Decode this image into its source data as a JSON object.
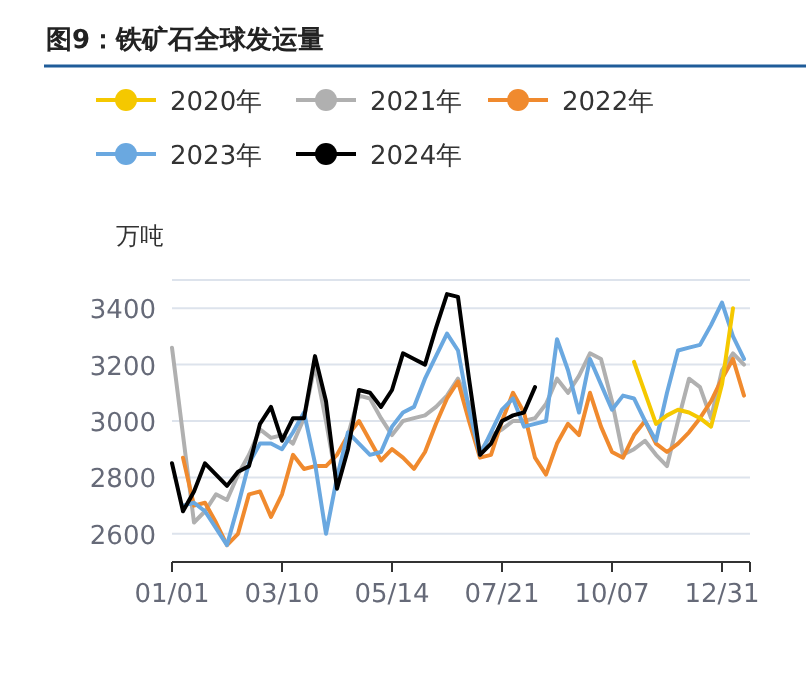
{
  "chart_data": {
    "type": "line",
    "title": "图9：铁矿石全球发运量",
    "ylabel": "万吨",
    "categories": [
      "01/01",
      null,
      null,
      null,
      null,
      null,
      null,
      null,
      null,
      null,
      "03/10",
      null,
      null,
      null,
      null,
      null,
      null,
      null,
      null,
      null,
      "05/14",
      null,
      null,
      null,
      null,
      null,
      null,
      null,
      null,
      null,
      "07/21",
      null,
      null,
      null,
      null,
      null,
      null,
      null,
      null,
      null,
      "10/07",
      null,
      null,
      null,
      null,
      null,
      null,
      null,
      null,
      null,
      "12/31",
      null,
      null
    ],
    "series": [
      {
        "name": "2020年",
        "color": "#f5c800",
        "values": [
          null,
          null,
          null,
          null,
          null,
          null,
          null,
          null,
          null,
          null,
          null,
          null,
          null,
          null,
          null,
          null,
          null,
          null,
          null,
          null,
          null,
          null,
          null,
          null,
          null,
          null,
          null,
          null,
          null,
          null,
          null,
          null,
          null,
          null,
          null,
          null,
          null,
          null,
          null,
          null,
          null,
          null,
          3210,
          3100,
          2990,
          3020,
          3040,
          3030,
          3010,
          2980,
          3130,
          3400,
          null
        ]
      },
      {
        "name": "2021年",
        "color": "#b0b0b0",
        "values": [
          3260,
          2950,
          2640,
          2680,
          2740,
          2720,
          2810,
          2880,
          2970,
          2940,
          2950,
          2920,
          3010,
          3200,
          3000,
          2780,
          2950,
          3090,
          3080,
          3010,
          2950,
          3000,
          3010,
          3020,
          3050,
          3090,
          3150,
          3060,
          2890,
          2950,
          2970,
          3000,
          3000,
          3010,
          3060,
          3150,
          3100,
          3160,
          3240,
          3220,
          3070,
          2880,
          2900,
          2930,
          2880,
          2840,
          3000,
          3150,
          3120,
          3010,
          3180,
          3240,
          3200
        ]
      },
      {
        "name": "2022年",
        "color": "#f08a2e",
        "values": [
          null,
          2870,
          2700,
          2710,
          2640,
          2560,
          2600,
          2740,
          2750,
          2660,
          2740,
          2880,
          2830,
          2840,
          2840,
          2880,
          2950,
          3000,
          2930,
          2860,
          2900,
          2870,
          2830,
          2890,
          2990,
          3080,
          3140,
          3000,
          2870,
          2880,
          3000,
          3100,
          3030,
          2870,
          2810,
          2920,
          2990,
          2950,
          3100,
          2980,
          2890,
          2870,
          2950,
          3000,
          2920,
          2890,
          2920,
          2960,
          3010,
          3070,
          3150,
          3220,
          3090
        ]
      },
      {
        "name": "2023年",
        "color": "#6aa8e0",
        "values": [
          null,
          2700,
          2710,
          2680,
          2620,
          2560,
          2700,
          2850,
          2920,
          2920,
          2900,
          2960,
          3030,
          2850,
          2600,
          2800,
          2960,
          2920,
          2880,
          2890,
          2980,
          3030,
          3050,
          3150,
          3230,
          3310,
          3250,
          3040,
          2880,
          2960,
          3040,
          3080,
          2980,
          2990,
          3000,
          3290,
          3180,
          3030,
          3220,
          3130,
          3040,
          3090,
          3080,
          3000,
          2930,
          3100,
          3250,
          3260,
          3270,
          3340,
          3420,
          3300,
          3220
        ]
      },
      {
        "name": "2024年",
        "color": "#000000",
        "values": [
          2850,
          2680,
          2750,
          2850,
          2810,
          2770,
          2820,
          2840,
          2990,
          3050,
          2930,
          3010,
          3010,
          3230,
          3070,
          2760,
          2900,
          3110,
          3100,
          3050,
          3110,
          3240,
          3220,
          3200,
          3330,
          3450,
          3440,
          3150,
          2880,
          2920,
          3000,
          3020,
          3030,
          3120,
          null,
          null,
          null,
          null,
          null,
          null,
          null,
          null,
          null,
          null,
          null,
          null,
          null,
          null,
          null,
          null,
          null,
          null,
          null
        ]
      }
    ],
    "ylim": [
      2500,
      3500
    ],
    "yticks": [
      {
        "value": 2500,
        "label": null
      },
      2600,
      2800,
      3000,
      3200,
      3400,
      {
        "value": 3500,
        "label": null
      }
    ],
    "grid": "y",
    "legend": "top"
  }
}
